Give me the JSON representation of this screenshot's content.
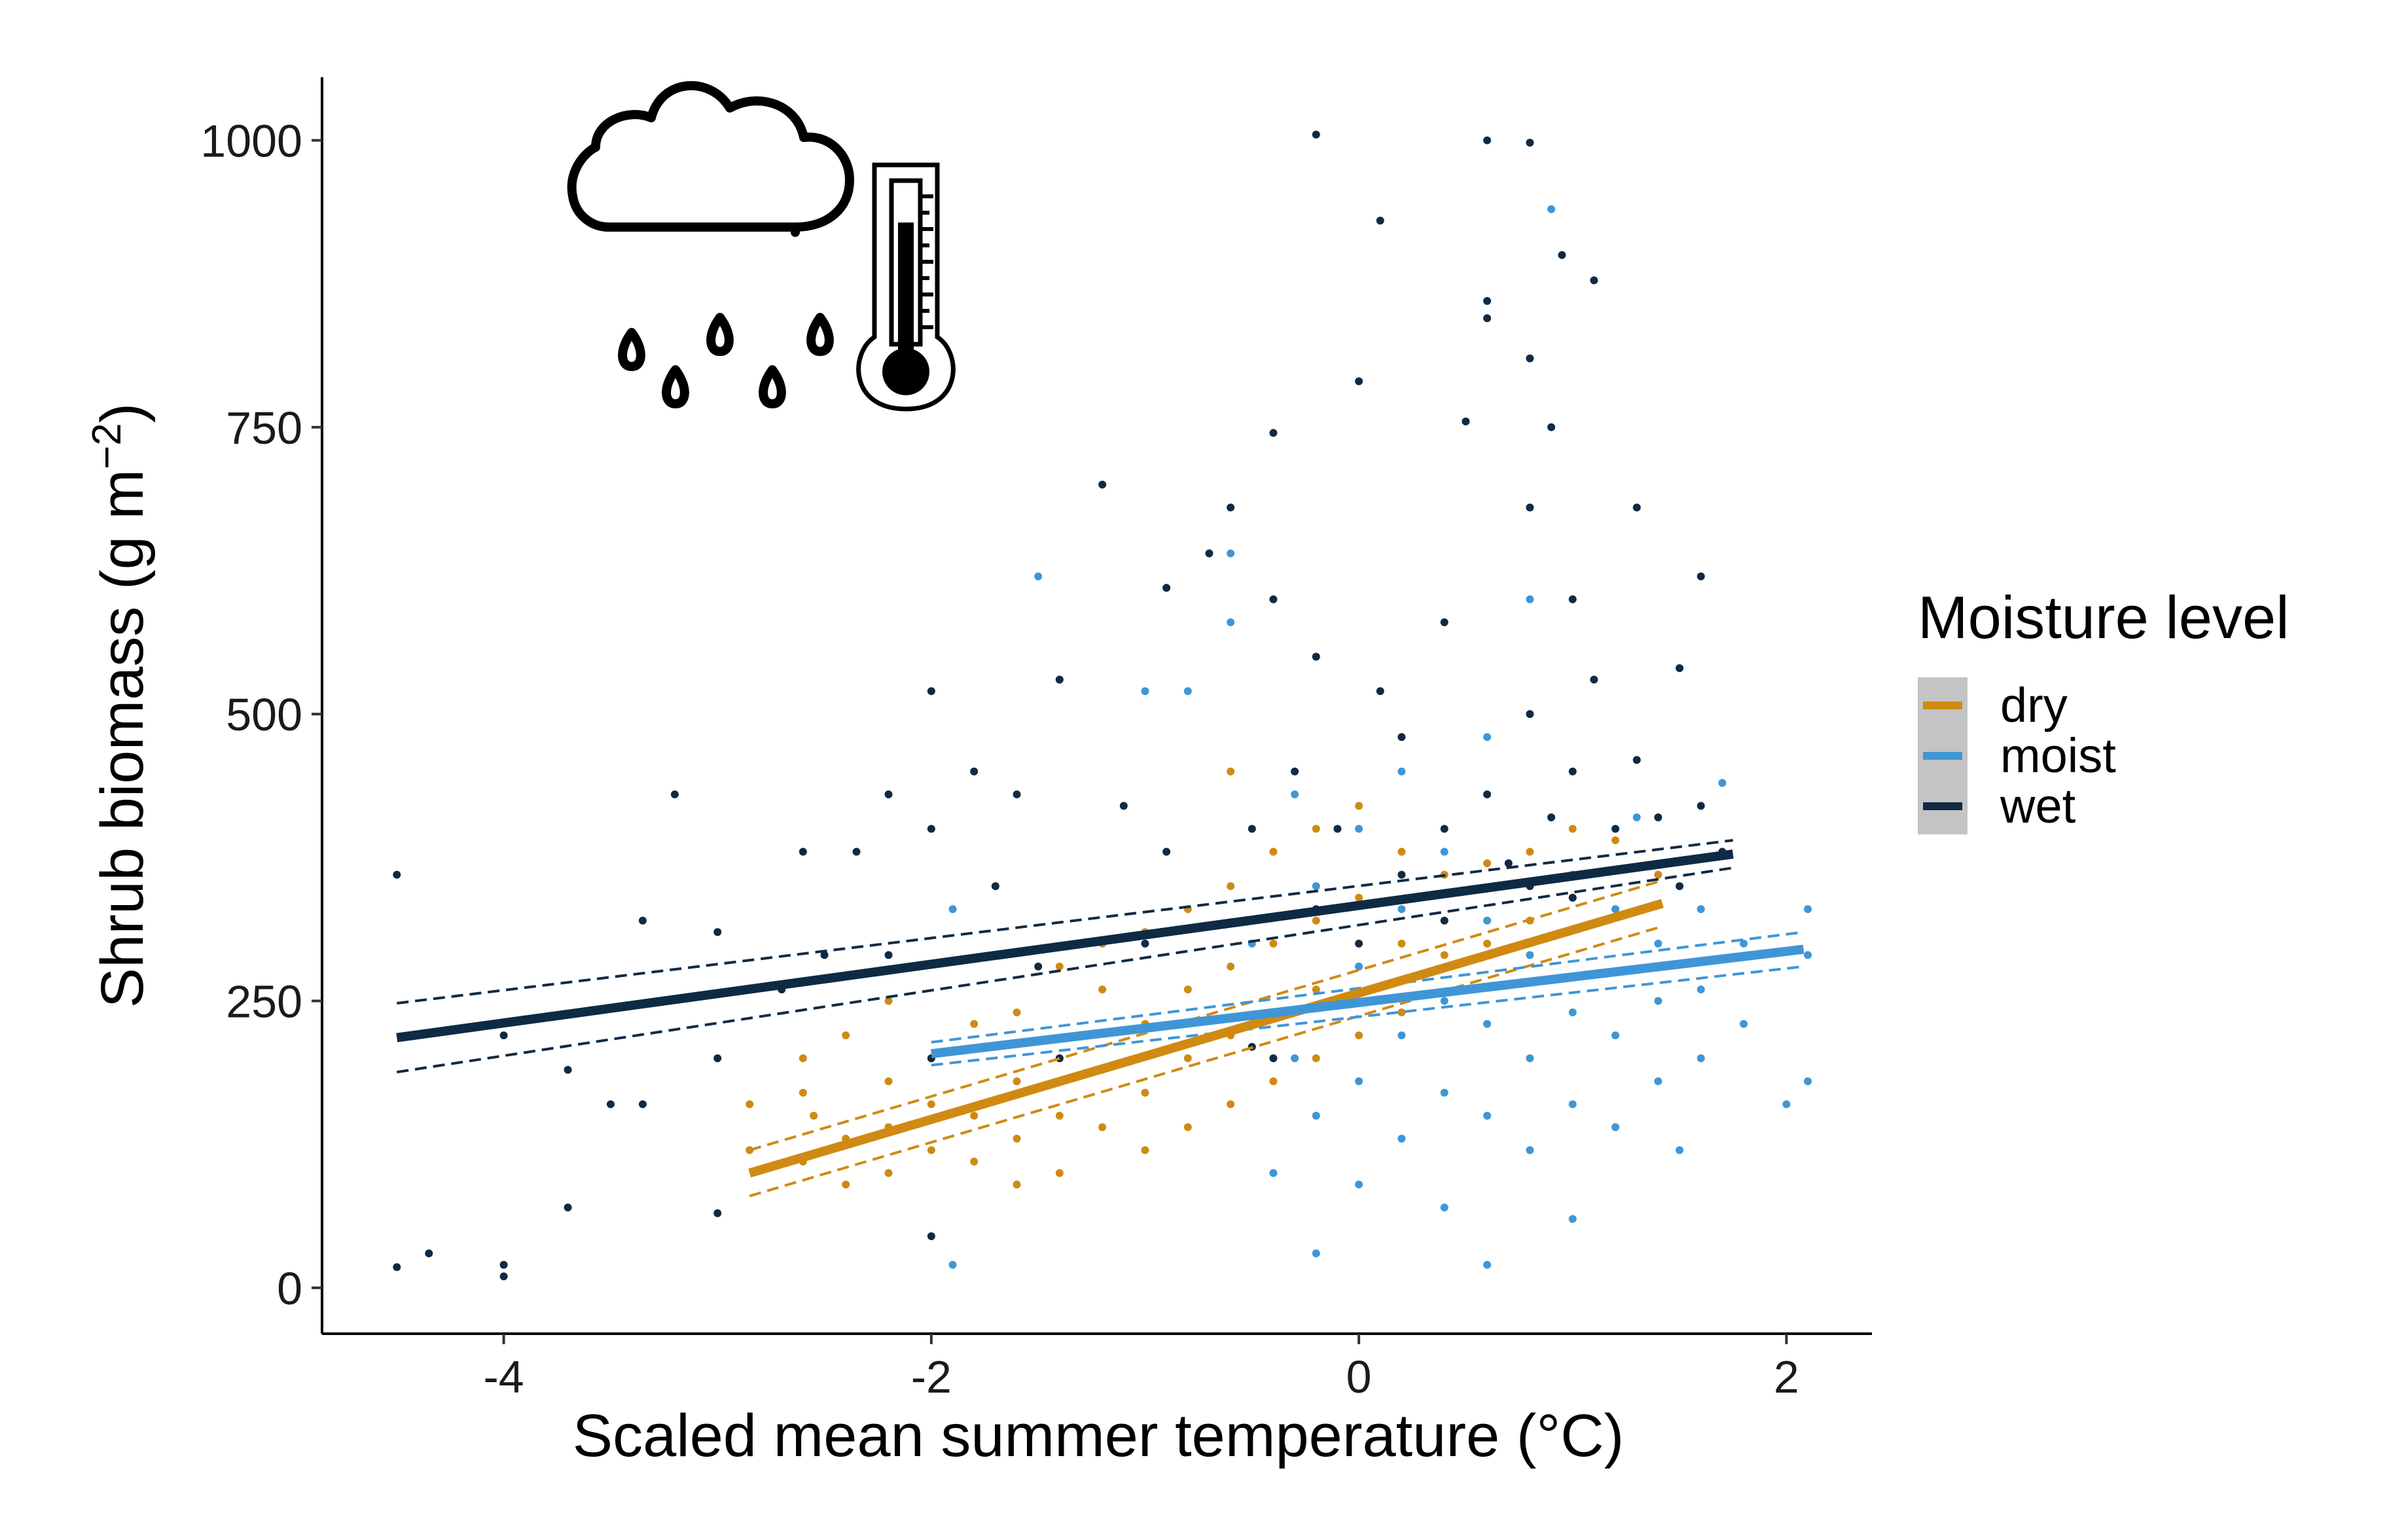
{
  "chart_data": {
    "type": "scatter",
    "title": "",
    "xlabel": "Scaled mean summer temperature (°C)",
    "ylabel_main": "Shrub biomass (g m",
    "ylabel_sup": "−2",
    "ylabel_close": ")",
    "xlim": [
      -4.85,
      2.4
    ],
    "ylim": [
      -40,
      1055
    ],
    "x_ticks": [
      -4,
      -2,
      0,
      2
    ],
    "x_tick_labels": [
      "-4",
      "-2",
      "0",
      "2"
    ],
    "y_ticks": [
      0,
      250,
      500,
      750,
      1000
    ],
    "y_tick_labels": [
      "0",
      "250",
      "500",
      "750",
      "1000"
    ],
    "grid": false,
    "legend": {
      "title": "Moisture level",
      "position": "right",
      "entries": [
        "dry",
        "moist",
        "wet"
      ]
    },
    "colors": {
      "dry": "#D08A12",
      "moist": "#3F96D6",
      "wet": "#0F2A44"
    },
    "series": [
      {
        "name": "dry",
        "color": "#D08A12",
        "fit": {
          "x": [
            -2.85,
            1.42
          ],
          "y": [
            100,
            335
          ]
        },
        "ci_upper": {
          "x": [
            -2.85,
            1.42
          ],
          "y": [
            120,
            355
          ]
        },
        "ci_lower": {
          "x": [
            -2.85,
            1.42
          ],
          "y": [
            80,
            315
          ]
        },
        "points": [
          [
            -2.85,
            160
          ],
          [
            -2.85,
            120
          ],
          [
            -2.6,
            170
          ],
          [
            -2.6,
            110
          ],
          [
            -2.6,
            200
          ],
          [
            -2.55,
            150
          ],
          [
            -2.4,
            130
          ],
          [
            -2.4,
            90
          ],
          [
            -2.4,
            220
          ],
          [
            -2.2,
            180
          ],
          [
            -2.2,
            140
          ],
          [
            -2.2,
            100
          ],
          [
            -2.2,
            250
          ],
          [
            -2.0,
            120
          ],
          [
            -2.0,
            200
          ],
          [
            -2.0,
            160
          ],
          [
            -1.8,
            230
          ],
          [
            -1.8,
            150
          ],
          [
            -1.8,
            110
          ],
          [
            -1.6,
            240
          ],
          [
            -1.6,
            180
          ],
          [
            -1.6,
            130
          ],
          [
            -1.6,
            90
          ],
          [
            -1.4,
            280
          ],
          [
            -1.4,
            200
          ],
          [
            -1.4,
            150
          ],
          [
            -1.4,
            100
          ],
          [
            -1.2,
            260
          ],
          [
            -1.2,
            190
          ],
          [
            -1.2,
            140
          ],
          [
            -1.2,
            300
          ],
          [
            -1.0,
            310
          ],
          [
            -1.0,
            230
          ],
          [
            -1.0,
            170
          ],
          [
            -1.0,
            120
          ],
          [
            -0.8,
            330
          ],
          [
            -0.8,
            260
          ],
          [
            -0.8,
            200
          ],
          [
            -0.8,
            140
          ],
          [
            -0.6,
            350
          ],
          [
            -0.6,
            280
          ],
          [
            -0.6,
            220
          ],
          [
            -0.6,
            160
          ],
          [
            -0.6,
            450
          ],
          [
            -0.4,
            380
          ],
          [
            -0.4,
            300
          ],
          [
            -0.4,
            240
          ],
          [
            -0.4,
            180
          ],
          [
            -0.2,
            400
          ],
          [
            -0.2,
            320
          ],
          [
            -0.2,
            260
          ],
          [
            -0.2,
            200
          ],
          [
            0.0,
            420
          ],
          [
            0.0,
            340
          ],
          [
            0.0,
            280
          ],
          [
            0.0,
            220
          ],
          [
            0.2,
            380
          ],
          [
            0.2,
            300
          ],
          [
            0.2,
            240
          ],
          [
            0.4,
            360
          ],
          [
            0.4,
            290
          ],
          [
            0.6,
            370
          ],
          [
            0.6,
            300
          ],
          [
            0.8,
            380
          ],
          [
            0.8,
            320
          ],
          [
            1.0,
            400
          ],
          [
            1.0,
            340
          ],
          [
            1.2,
            390
          ],
          [
            1.2,
            330
          ],
          [
            1.4,
            360
          ]
        ]
      },
      {
        "name": "moist",
        "color": "#3F96D6",
        "fit": {
          "x": [
            -2.0,
            2.08
          ],
          "y": [
            204,
            295
          ]
        },
        "ci_upper": {
          "x": [
            -2.0,
            2.08
          ],
          "y": [
            214,
            310
          ]
        },
        "ci_lower": {
          "x": [
            -2.0,
            2.08
          ],
          "y": [
            194,
            280
          ]
        },
        "points": [
          [
            -1.9,
            330
          ],
          [
            -1.9,
            20
          ],
          [
            -1.5,
            620
          ],
          [
            -1.4,
            530
          ],
          [
            -1.0,
            520
          ],
          [
            -0.8,
            520
          ],
          [
            -0.6,
            640
          ],
          [
            -0.6,
            580
          ],
          [
            -0.5,
            300
          ],
          [
            -0.4,
            100
          ],
          [
            -0.4,
            240
          ],
          [
            -0.3,
            200
          ],
          [
            -0.3,
            430
          ],
          [
            -0.2,
            150
          ],
          [
            -0.2,
            30
          ],
          [
            -0.2,
            350
          ],
          [
            0.0,
            180
          ],
          [
            0.0,
            280
          ],
          [
            0.0,
            400
          ],
          [
            0.0,
            90
          ],
          [
            0.2,
            220
          ],
          [
            0.2,
            130
          ],
          [
            0.2,
            330
          ],
          [
            0.2,
            450
          ],
          [
            0.4,
            250
          ],
          [
            0.4,
            170
          ],
          [
            0.4,
            70
          ],
          [
            0.4,
            380
          ],
          [
            0.6,
            230
          ],
          [
            0.6,
            150
          ],
          [
            0.6,
            320
          ],
          [
            0.6,
            20
          ],
          [
            0.6,
            480
          ],
          [
            0.8,
            200
          ],
          [
            0.8,
            120
          ],
          [
            0.8,
            290
          ],
          [
            0.8,
            600
          ],
          [
            0.9,
            940
          ],
          [
            1.0,
            240
          ],
          [
            1.0,
            160
          ],
          [
            1.0,
            360
          ],
          [
            1.0,
            60
          ],
          [
            1.2,
            220
          ],
          [
            1.2,
            140
          ],
          [
            1.2,
            330
          ],
          [
            1.3,
            410
          ],
          [
            1.4,
            250
          ],
          [
            1.4,
            180
          ],
          [
            1.4,
            300
          ],
          [
            1.5,
            120
          ],
          [
            1.6,
            260
          ],
          [
            1.6,
            200
          ],
          [
            1.6,
            330
          ],
          [
            1.7,
            440
          ],
          [
            1.8,
            300
          ],
          [
            1.8,
            230
          ],
          [
            2.0,
            160
          ],
          [
            2.1,
            330
          ],
          [
            2.1,
            290
          ],
          [
            2.1,
            180
          ]
        ]
      },
      {
        "name": "wet",
        "color": "#0F2A44",
        "fit": {
          "x": [
            -4.5,
            1.75
          ],
          "y": [
            218,
            378
          ]
        },
        "ci_upper": {
          "x": [
            -4.5,
            1.75
          ],
          "y": [
            248,
            390
          ]
        },
        "ci_lower": {
          "x": [
            -4.5,
            1.75
          ],
          "y": [
            188,
            366
          ]
        },
        "points": [
          [
            -4.5,
            360
          ],
          [
            -4.5,
            18
          ],
          [
            -4.35,
            30
          ],
          [
            -4.0,
            20
          ],
          [
            -4.0,
            10
          ],
          [
            -4.0,
            220
          ],
          [
            -3.7,
            70
          ],
          [
            -3.7,
            190
          ],
          [
            -3.5,
            160
          ],
          [
            -3.35,
            320
          ],
          [
            -3.35,
            160
          ],
          [
            -3.2,
            430
          ],
          [
            -3.0,
            310
          ],
          [
            -3.0,
            200
          ],
          [
            -3.0,
            65
          ],
          [
            -2.7,
            260
          ],
          [
            -2.6,
            380
          ],
          [
            -2.5,
            290
          ],
          [
            -2.35,
            380
          ],
          [
            -2.2,
            430
          ],
          [
            -2.2,
            290
          ],
          [
            -2.0,
            520
          ],
          [
            -2.0,
            400
          ],
          [
            -2.0,
            200
          ],
          [
            -2.0,
            45
          ],
          [
            -1.8,
            450
          ],
          [
            -1.7,
            350
          ],
          [
            -1.6,
            430
          ],
          [
            -1.5,
            280
          ],
          [
            -1.4,
            530
          ],
          [
            -1.4,
            200
          ],
          [
            -1.2,
            700
          ],
          [
            -1.1,
            420
          ],
          [
            -1.0,
            300
          ],
          [
            -0.9,
            380
          ],
          [
            -0.9,
            610
          ],
          [
            -0.7,
            640
          ],
          [
            -0.6,
            680
          ],
          [
            -0.5,
            400
          ],
          [
            -0.5,
            210
          ],
          [
            -0.4,
            745
          ],
          [
            -0.4,
            600
          ],
          [
            -0.4,
            200
          ],
          [
            -0.3,
            450
          ],
          [
            -0.2,
            1005
          ],
          [
            -0.2,
            550
          ],
          [
            -0.2,
            330
          ],
          [
            -0.1,
            400
          ],
          [
            0.0,
            790
          ],
          [
            0.0,
            300
          ],
          [
            0.1,
            930
          ],
          [
            0.1,
            520
          ],
          [
            0.2,
            360
          ],
          [
            0.2,
            480
          ],
          [
            0.4,
            580
          ],
          [
            0.4,
            400
          ],
          [
            0.4,
            320
          ],
          [
            0.5,
            755
          ],
          [
            0.6,
            1000
          ],
          [
            0.6,
            860
          ],
          [
            0.6,
            845
          ],
          [
            0.6,
            430
          ],
          [
            0.7,
            370
          ],
          [
            0.8,
            998
          ],
          [
            0.8,
            810
          ],
          [
            0.8,
            680
          ],
          [
            0.8,
            500
          ],
          [
            0.8,
            350
          ],
          [
            0.9,
            750
          ],
          [
            0.9,
            410
          ],
          [
            0.95,
            900
          ],
          [
            1.0,
            600
          ],
          [
            1.0,
            450
          ],
          [
            1.0,
            340
          ],
          [
            1.1,
            878
          ],
          [
            1.1,
            530
          ],
          [
            1.2,
            400
          ],
          [
            1.3,
            680
          ],
          [
            1.3,
            460
          ],
          [
            1.4,
            410
          ],
          [
            1.5,
            540
          ],
          [
            1.5,
            350
          ],
          [
            1.6,
            620
          ],
          [
            1.6,
            420
          ],
          [
            1.7,
            380
          ]
        ]
      }
    ]
  }
}
